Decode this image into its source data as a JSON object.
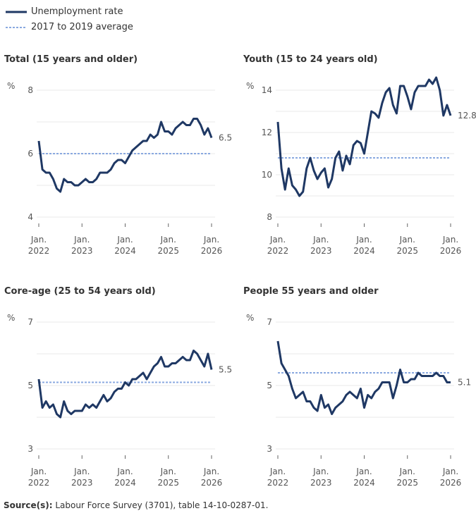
{
  "legend": {
    "series_label": "Unemployment rate",
    "average_label": "2017 to 2019 average"
  },
  "colors": {
    "series": "#1f3864",
    "average": "#8aa9e0",
    "grid": "#e8e8e8"
  },
  "source": {
    "label": "Source(s):",
    "text": " Labour Force Survey (3701), table 14-10-0287-01."
  },
  "chart_data": [
    {
      "type": "line",
      "title": "Total (15 years and older)",
      "ylabel": "%",
      "ylim": [
        4,
        8
      ],
      "yticks": [
        4,
        6,
        8
      ],
      "grid": true,
      "xticks": [
        [
          "Jan.",
          "2022"
        ],
        [
          "Jan.",
          "2023"
        ],
        [
          "Jan.",
          "2024"
        ],
        [
          "Jan.",
          "2025"
        ],
        [
          "Jan.",
          "2026"
        ]
      ],
      "x_range": [
        "2022-01",
        "2026-01"
      ],
      "average": 6.0,
      "last_label": "6.5",
      "values": [
        6.4,
        5.5,
        5.4,
        5.4,
        5.2,
        4.9,
        4.8,
        5.2,
        5.1,
        5.1,
        5.0,
        5.0,
        5.1,
        5.2,
        5.1,
        5.1,
        5.2,
        5.4,
        5.4,
        5.4,
        5.5,
        5.7,
        5.8,
        5.8,
        5.7,
        5.9,
        6.1,
        6.2,
        6.3,
        6.4,
        6.4,
        6.6,
        6.5,
        6.6,
        7.0,
        6.7,
        6.7,
        6.6,
        6.8,
        6.9,
        7.0,
        6.9,
        6.9,
        7.1,
        7.1,
        6.9,
        6.6,
        6.8,
        6.5
      ]
    },
    {
      "type": "line",
      "title": "Youth (15 to 24 years old)",
      "ylabel": "%",
      "ylim": [
        8,
        14
      ],
      "yticks": [
        8,
        10,
        12,
        14
      ],
      "grid": true,
      "xticks": [
        [
          "Jan.",
          "2022"
        ],
        [
          "Jan.",
          "2023"
        ],
        [
          "Jan.",
          "2024"
        ],
        [
          "Jan.",
          "2025"
        ],
        [
          "Jan.",
          "2026"
        ]
      ],
      "x_range": [
        "2022-01",
        "2026-01"
      ],
      "average": 10.8,
      "last_label": "12.8",
      "values": [
        12.5,
        10.3,
        9.3,
        10.3,
        9.5,
        9.3,
        9.0,
        9.2,
        10.3,
        10.8,
        10.2,
        9.8,
        10.1,
        10.3,
        9.4,
        9.8,
        10.8,
        11.1,
        10.2,
        10.9,
        10.5,
        11.4,
        11.6,
        11.5,
        11.0,
        12.0,
        13.0,
        12.9,
        12.7,
        13.4,
        13.9,
        14.1,
        13.3,
        12.9,
        14.2,
        14.2,
        13.7,
        13.1,
        13.9,
        14.2,
        14.2,
        14.2,
        14.5,
        14.3,
        14.6,
        14.0,
        12.8,
        13.3,
        12.8
      ]
    },
    {
      "type": "line",
      "title": "Core-age (25 to 54 years old)",
      "ylabel": "%",
      "ylim": [
        3,
        7
      ],
      "yticks": [
        3,
        5,
        7
      ],
      "grid": true,
      "xticks": [
        [
          "Jan.",
          "2022"
        ],
        [
          "Jan.",
          "2023"
        ],
        [
          "Jan.",
          "2024"
        ],
        [
          "Jan.",
          "2025"
        ],
        [
          "Jan.",
          "2026"
        ]
      ],
      "x_range": [
        "2022-01",
        "2026-01"
      ],
      "average": 5.1,
      "last_label": "5.5",
      "values": [
        5.2,
        4.3,
        4.5,
        4.3,
        4.4,
        4.1,
        4.0,
        4.5,
        4.2,
        4.1,
        4.2,
        4.2,
        4.2,
        4.4,
        4.3,
        4.4,
        4.3,
        4.5,
        4.7,
        4.5,
        4.6,
        4.8,
        4.9,
        4.9,
        5.1,
        5.0,
        5.2,
        5.2,
        5.3,
        5.4,
        5.2,
        5.4,
        5.6,
        5.7,
        5.9,
        5.6,
        5.6,
        5.7,
        5.7,
        5.8,
        5.9,
        5.8,
        5.8,
        6.1,
        6.0,
        5.8,
        5.6,
        6.0,
        5.5
      ]
    },
    {
      "type": "line",
      "title": "People 55 years and older",
      "ylabel": "%",
      "ylim": [
        3,
        7
      ],
      "yticks": [
        3,
        5,
        7
      ],
      "grid": true,
      "xticks": [
        [
          "Jan.",
          "2022"
        ],
        [
          "Jan.",
          "2023"
        ],
        [
          "Jan.",
          "2024"
        ],
        [
          "Jan.",
          "2025"
        ],
        [
          "Jan.",
          "2026"
        ]
      ],
      "x_range": [
        "2022-01",
        "2026-01"
      ],
      "average": 5.4,
      "last_label": "5.1",
      "values": [
        6.4,
        5.7,
        5.5,
        5.3,
        4.9,
        4.6,
        4.7,
        4.8,
        4.5,
        4.5,
        4.3,
        4.2,
        4.7,
        4.3,
        4.4,
        4.1,
        4.3,
        4.4,
        4.5,
        4.7,
        4.8,
        4.7,
        4.6,
        4.9,
        4.3,
        4.7,
        4.6,
        4.8,
        4.9,
        5.1,
        5.1,
        5.1,
        4.6,
        5.0,
        5.5,
        5.1,
        5.1,
        5.2,
        5.2,
        5.4,
        5.3,
        5.3,
        5.3,
        5.3,
        5.4,
        5.3,
        5.3,
        5.1,
        5.1
      ]
    }
  ]
}
